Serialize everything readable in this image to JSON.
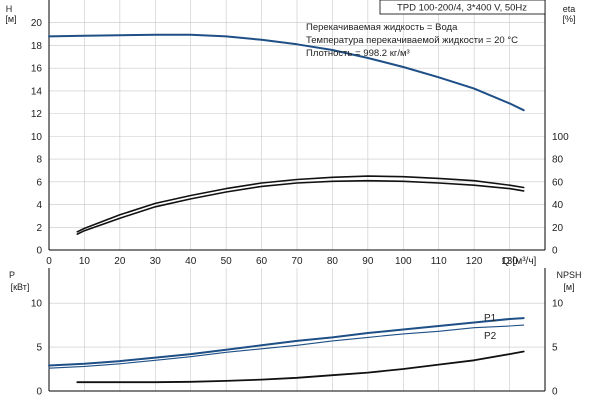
{
  "colors": {
    "blue": "#1e4f86",
    "black": "#111111"
  },
  "chart_data": {
    "type": "line",
    "title": "TPD 100-200/4, 3*400 V, 50Hz",
    "notes": [
      "Перекачиваемая жидкость = Вода",
      "Температура перекачиваемой жидкости = 20 °C",
      "Плотность = 998.2 кг/м³"
    ],
    "top": {
      "x_label": "Q [м³/ч]",
      "x_ticks": [
        "0",
        "10",
        "20",
        "30",
        "40",
        "50",
        "60",
        "70",
        "80",
        "90",
        "100",
        "110",
        "120",
        "130"
      ],
      "xlim": [
        0,
        140
      ],
      "left_axis": {
        "label_line1": "H",
        "label_line2": "[м]",
        "ylim": [
          0,
          22
        ],
        "ticks": [
          "0",
          "2",
          "4",
          "6",
          "8",
          "10",
          "12",
          "14",
          "16",
          "18",
          "20"
        ]
      },
      "right_axis": {
        "label_line1": "eta",
        "label_line2": "[%]",
        "ylim": [
          0,
          220
        ],
        "ticks": [
          "0",
          "20",
          "40",
          "60",
          "80",
          "100"
        ]
      },
      "series": [
        {
          "axis": "left",
          "color": "blue",
          "width": 2,
          "x": [
            0,
            10,
            20,
            30,
            40,
            50,
            60,
            70,
            80,
            90,
            100,
            110,
            120,
            130,
            134
          ],
          "y": [
            18.8,
            18.85,
            18.9,
            18.95,
            18.95,
            18.8,
            18.5,
            18.1,
            17.6,
            16.9,
            16.1,
            15.2,
            14.2,
            12.9,
            12.3
          ]
        },
        {
          "axis": "right",
          "color": "black",
          "width": 1.6,
          "x": [
            8,
            10,
            20,
            30,
            40,
            50,
            60,
            70,
            80,
            90,
            100,
            110,
            120,
            130,
            134
          ],
          "y": [
            16,
            19,
            31,
            41,
            48,
            54,
            59,
            62,
            64,
            65,
            64.5,
            63,
            61,
            57,
            55
          ]
        },
        {
          "axis": "right",
          "color": "black",
          "width": 1.6,
          "x": [
            8,
            10,
            20,
            30,
            40,
            50,
            60,
            70,
            80,
            90,
            100,
            110,
            120,
            130,
            134
          ],
          "y": [
            14,
            17,
            28,
            38,
            45,
            51,
            56,
            59,
            60.5,
            61,
            60.5,
            59,
            57,
            54,
            52
          ]
        }
      ]
    },
    "bottom": {
      "left_axis": {
        "label_line1": "P",
        "label_line2": "[кВт]",
        "ylim": [
          0,
          14
        ],
        "ticks": [
          "0",
          "5",
          "10"
        ]
      },
      "right_axis": {
        "label_line1": "NPSH",
        "label_line2": "[м]",
        "ylim": [
          0,
          14
        ],
        "ticks": [
          "0",
          "5",
          "10"
        ]
      },
      "series": [
        {
          "name": "P1",
          "axis": "left",
          "color": "blue",
          "width": 2,
          "x": [
            0,
            10,
            20,
            30,
            40,
            50,
            60,
            70,
            80,
            90,
            100,
            110,
            120,
            130,
            134
          ],
          "y": [
            2.9,
            3.1,
            3.4,
            3.8,
            4.2,
            4.7,
            5.2,
            5.7,
            6.1,
            6.6,
            7.0,
            7.4,
            7.8,
            8.2,
            8.3
          ]
        },
        {
          "name": "P2",
          "axis": "left",
          "color": "blue",
          "width": 1.1,
          "x": [
            0,
            10,
            20,
            30,
            40,
            50,
            60,
            70,
            80,
            90,
            100,
            110,
            120,
            130,
            134
          ],
          "y": [
            2.6,
            2.8,
            3.1,
            3.5,
            3.9,
            4.4,
            4.8,
            5.2,
            5.7,
            6.1,
            6.5,
            6.8,
            7.2,
            7.4,
            7.5
          ]
        },
        {
          "axis": "right",
          "color": "black",
          "width": 1.8,
          "x": [
            8,
            10,
            20,
            30,
            40,
            50,
            60,
            70,
            80,
            90,
            100,
            110,
            120,
            130,
            134
          ],
          "y": [
            1.0,
            1.0,
            1.0,
            1.0,
            1.05,
            1.15,
            1.3,
            1.5,
            1.8,
            2.1,
            2.5,
            3.0,
            3.5,
            4.2,
            4.5
          ]
        }
      ]
    }
  }
}
